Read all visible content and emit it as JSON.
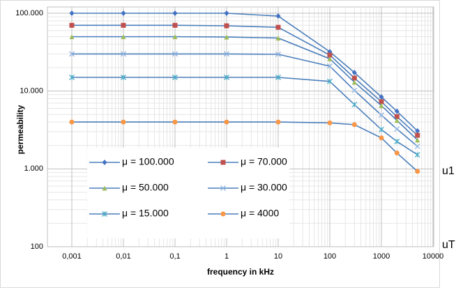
{
  "chart_data": {
    "type": "line",
    "x_label": "frequency in kHz",
    "y_label": "permeability",
    "log_x": true,
    "log_y": true,
    "grid": true,
    "minor_grid": true,
    "legend": "lower-left",
    "line_color": "#4a7ebb",
    "x": [
      0.001,
      0.01,
      0.1,
      1,
      10,
      100,
      300,
      1000,
      2000,
      5000
    ],
    "xlim": [
      0.001,
      10000
    ],
    "xticks": [
      {
        "value": 0.001,
        "label": "0,001"
      },
      {
        "value": 0.01,
        "label": "0,01"
      },
      {
        "value": 0.1,
        "label": "0,1"
      },
      1,
      10,
      100,
      1000,
      10000
    ],
    "ylim": [
      100,
      100000
    ],
    "yticks": [
      100,
      {
        "value": 1000,
        "label": "1.000"
      },
      {
        "value": 10000,
        "label": "10.000"
      },
      {
        "value": 100000,
        "label": "100.000"
      }
    ],
    "series": [
      {
        "name": "μ = 100.000",
        "color": "#4472c4",
        "marker": "diamond",
        "values": [
          100000,
          100000,
          100000,
          100000,
          92000,
          32000,
          17300,
          8400,
          5500,
          3070
        ]
      },
      {
        "name": "μ = 70.000",
        "color": "#c0504d",
        "marker": "square",
        "values": [
          70000,
          70000,
          70000,
          69000,
          66000,
          29000,
          14700,
          7300,
          4700,
          2700
        ]
      },
      {
        "name": "μ = 50.000",
        "color": "#9bbb59",
        "marker": "triangle",
        "values": [
          50000,
          50000,
          50000,
          49500,
          48000,
          26000,
          13000,
          6500,
          4200,
          2350
        ]
      },
      {
        "name": "μ = 30.000",
        "color": "#8eb4e3",
        "marker": "x",
        "values": [
          30000,
          30000,
          30000,
          30000,
          29700,
          20900,
          10200,
          4900,
          3250,
          1950
        ]
      },
      {
        "name": "μ = 15.000",
        "color": "#4bacc6",
        "marker": "star",
        "values": [
          15000,
          15000,
          15000,
          15000,
          15000,
          13300,
          6700,
          3200,
          2250,
          1520
        ]
      },
      {
        "name": "μ = 4000",
        "color": "#f79646",
        "marker": "circle",
        "values": [
          4000,
          4000,
          4000,
          4000,
          4000,
          3900,
          3700,
          2500,
          1600,
          930
        ]
      }
    ],
    "annotations": [
      "u1",
      "uT"
    ]
  }
}
